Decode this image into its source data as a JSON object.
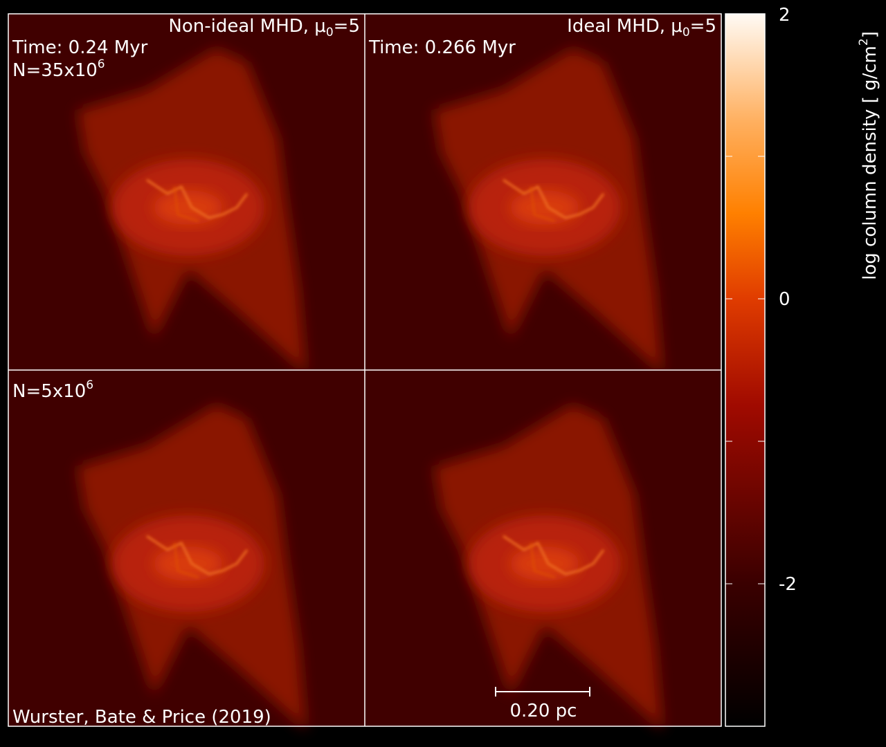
{
  "panels": [
    {
      "title": "Non-ideal MHD, μ",
      "title_sub": "0",
      "title_end": "=5",
      "time": "Time: 0.24 Myr",
      "resolution": "N=35x10",
      "resolution_sup": "6"
    },
    {
      "title": "Ideal MHD, μ",
      "title_sub": "0",
      "title_end": "=5",
      "time": "Time: 0.266 Myr"
    },
    {
      "resolution": "N=5x10",
      "resolution_sup": "6"
    },
    {}
  ],
  "credit": "Wurster, Bate & Price (2019)",
  "scale_bar": "0.20 pc",
  "colorbar": {
    "label": "log column density [ g/cm",
    "label_sup": "2",
    "label_end": "]",
    "lim": [
      -3,
      2
    ],
    "ticks": [
      2,
      0,
      -2
    ],
    "minor_ticks": [
      1,
      -1
    ]
  }
}
